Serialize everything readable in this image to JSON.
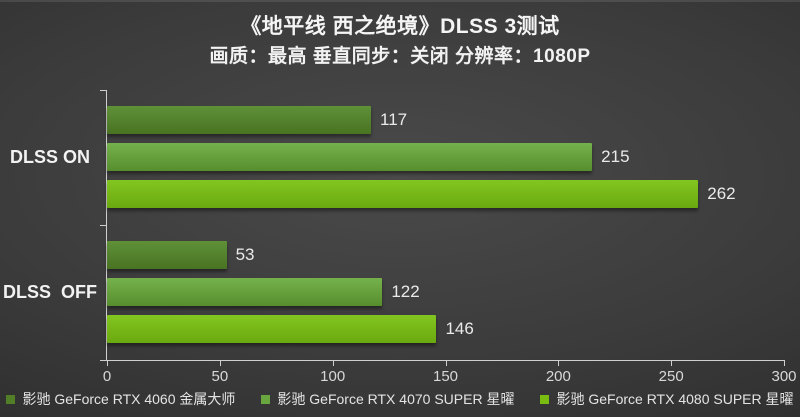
{
  "chart_data": {
    "type": "bar",
    "orientation": "horizontal",
    "title": "《地平线 西之绝境》DLSS 3测试",
    "subtitle": "画质：最高 垂直同步：关闭 分辨率：1080P",
    "categories": [
      "DLSS ON",
      "DLSS  OFF"
    ],
    "series": [
      {
        "name": "影驰 GeForce RTX 4060 金属大师",
        "values": [
          117,
          53
        ],
        "color": "#527e28",
        "gradient_top": "#5f9138",
        "gradient_bottom": "#497322"
      },
      {
        "name": "影驰 GeForce RTX 4070 SUPER 星曜",
        "values": [
          215,
          122
        ],
        "color": "#69a63f",
        "gradient_top": "#75b24d",
        "gradient_bottom": "#578e2d"
      },
      {
        "name": "影驰 GeForce RTX 4080 SUPER 星曜",
        "values": [
          262,
          146
        ],
        "color": "#79bc12",
        "gradient_top": "#83c620",
        "gradient_bottom": "#6aa90f"
      }
    ],
    "xlim": [
      0,
      300
    ],
    "x_ticks": [
      0,
      50,
      100,
      150,
      200,
      250,
      300
    ],
    "legend_position": "bottom",
    "grid": false,
    "background": "#3b3b3b",
    "axis_color": "#cfcfcf",
    "text_color": "#f2f2f2"
  }
}
